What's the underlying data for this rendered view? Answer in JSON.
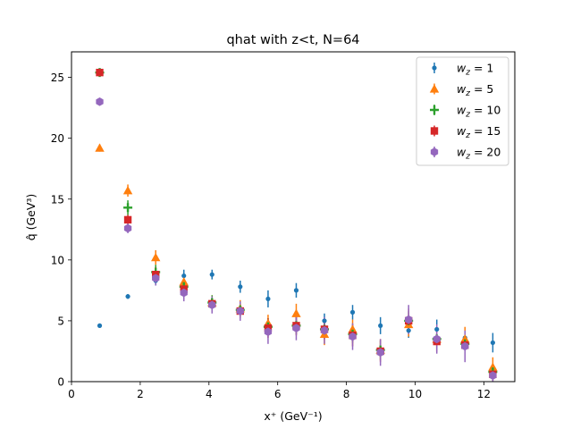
{
  "chart_data": {
    "type": "scatter",
    "title": "qhat with z<t, N=64",
    "xlabel": "x⁺ (GeV⁻¹)",
    "ylabel": "q̂ (GeV³)",
    "xlim": [
      0,
      12.9
    ],
    "ylim": [
      0,
      27.1
    ],
    "xticks": [
      0,
      2,
      4,
      6,
      8,
      10,
      12
    ],
    "xtick_labels": [
      "0",
      "2",
      "4",
      "6",
      "8",
      "10",
      "12"
    ],
    "yticks": [
      0,
      5,
      10,
      15,
      20,
      25
    ],
    "ytick_labels": [
      "0",
      "5",
      "10",
      "15",
      "20",
      "25"
    ],
    "grid": false,
    "legend_position": "top-right",
    "series": [
      {
        "name": "w_z = 1",
        "legend_prefix": "w",
        "legend_sub": "z",
        "legend_value": "= 1",
        "color": "#1f77b4",
        "marker": "circle-small",
        "x": [
          0.82,
          1.64,
          2.45,
          3.27,
          4.09,
          4.91,
          5.72,
          6.54,
          7.36,
          8.18,
          8.99,
          9.81,
          10.63,
          11.45,
          12.26
        ],
        "y": [
          4.6,
          7.0,
          8.3,
          8.7,
          8.8,
          7.8,
          6.8,
          7.5,
          5.0,
          5.7,
          4.6,
          4.2,
          4.3,
          3.6,
          3.2
        ],
        "err": [
          0.15,
          0.2,
          0.4,
          0.5,
          0.4,
          0.5,
          0.7,
          0.6,
          0.6,
          0.6,
          0.7,
          0.6,
          0.8,
          0.7,
          0.8
        ]
      },
      {
        "name": "w_z = 5",
        "legend_prefix": "w",
        "legend_sub": "z",
        "legend_value": "= 5",
        "color": "#ff7f0e",
        "marker": "triangle",
        "x": [
          0.82,
          1.64,
          2.45,
          3.27,
          4.09,
          4.91,
          5.72,
          6.54,
          7.36,
          8.18,
          8.99,
          9.81,
          10.63,
          11.45,
          12.26
        ],
        "y": [
          19.2,
          15.7,
          10.2,
          8.2,
          6.5,
          6.0,
          4.8,
          5.6,
          3.9,
          4.3,
          2.6,
          4.7,
          3.5,
          3.5,
          1.2
        ],
        "err": [
          0.3,
          0.5,
          0.6,
          0.6,
          0.6,
          0.7,
          0.7,
          0.8,
          0.9,
          0.8,
          0.9,
          1.0,
          1.0,
          1.0,
          0.8
        ]
      },
      {
        "name": "w_z = 10",
        "legend_prefix": "w",
        "legend_sub": "z",
        "legend_value": "= 10",
        "color": "#2ca02c",
        "marker": "plus",
        "x": [
          0.82,
          1.64,
          2.45,
          3.27,
          4.09,
          4.91,
          5.72,
          6.54,
          7.36,
          8.18,
          8.99,
          9.81,
          10.63,
          11.45,
          12.26
        ],
        "y": [
          25.4,
          14.3,
          9.0,
          7.8,
          6.5,
          5.9,
          4.5,
          4.6,
          4.3,
          3.9,
          2.6,
          5.0,
          3.5,
          3.1,
          0.8
        ],
        "err": [
          0.3,
          0.6,
          0.6,
          0.6,
          0.6,
          0.6,
          0.7,
          0.7,
          0.7,
          0.7,
          0.8,
          0.8,
          0.8,
          0.8,
          0.6
        ]
      },
      {
        "name": "w_z = 15",
        "legend_prefix": "w",
        "legend_sub": "z",
        "legend_value": "= 15",
        "color": "#d62728",
        "marker": "square",
        "x": [
          0.82,
          1.64,
          2.45,
          3.27,
          4.09,
          4.91,
          5.72,
          6.54,
          7.36,
          8.18,
          8.99,
          9.81,
          10.63,
          11.45,
          12.26
        ],
        "y": [
          25.4,
          13.3,
          8.8,
          7.6,
          6.4,
          5.8,
          4.4,
          4.6,
          4.3,
          3.8,
          2.5,
          5.0,
          3.3,
          3.0,
          0.6
        ],
        "err": [
          0.3,
          0.4,
          0.6,
          0.6,
          0.6,
          0.6,
          0.8,
          0.8,
          0.8,
          0.9,
          0.9,
          1.0,
          0.9,
          1.0,
          0.5
        ]
      },
      {
        "name": "w_z = 20",
        "legend_prefix": "w",
        "legend_sub": "z",
        "legend_value": "= 20",
        "color": "#9467bd",
        "marker": "hexagon",
        "x": [
          0.82,
          1.64,
          2.45,
          3.27,
          4.09,
          4.91,
          5.72,
          6.54,
          7.36,
          8.18,
          8.99,
          9.81,
          10.63,
          11.45,
          12.26
        ],
        "y": [
          23.0,
          12.6,
          8.5,
          7.3,
          6.3,
          5.8,
          4.1,
          4.4,
          4.2,
          3.7,
          2.4,
          5.1,
          3.5,
          2.9,
          0.5
        ],
        "err": [
          0.2,
          0.4,
          0.6,
          0.7,
          0.7,
          0.8,
          1.0,
          1.0,
          1.1,
          1.1,
          1.1,
          1.2,
          1.2,
          1.3,
          0.5
        ]
      }
    ]
  }
}
